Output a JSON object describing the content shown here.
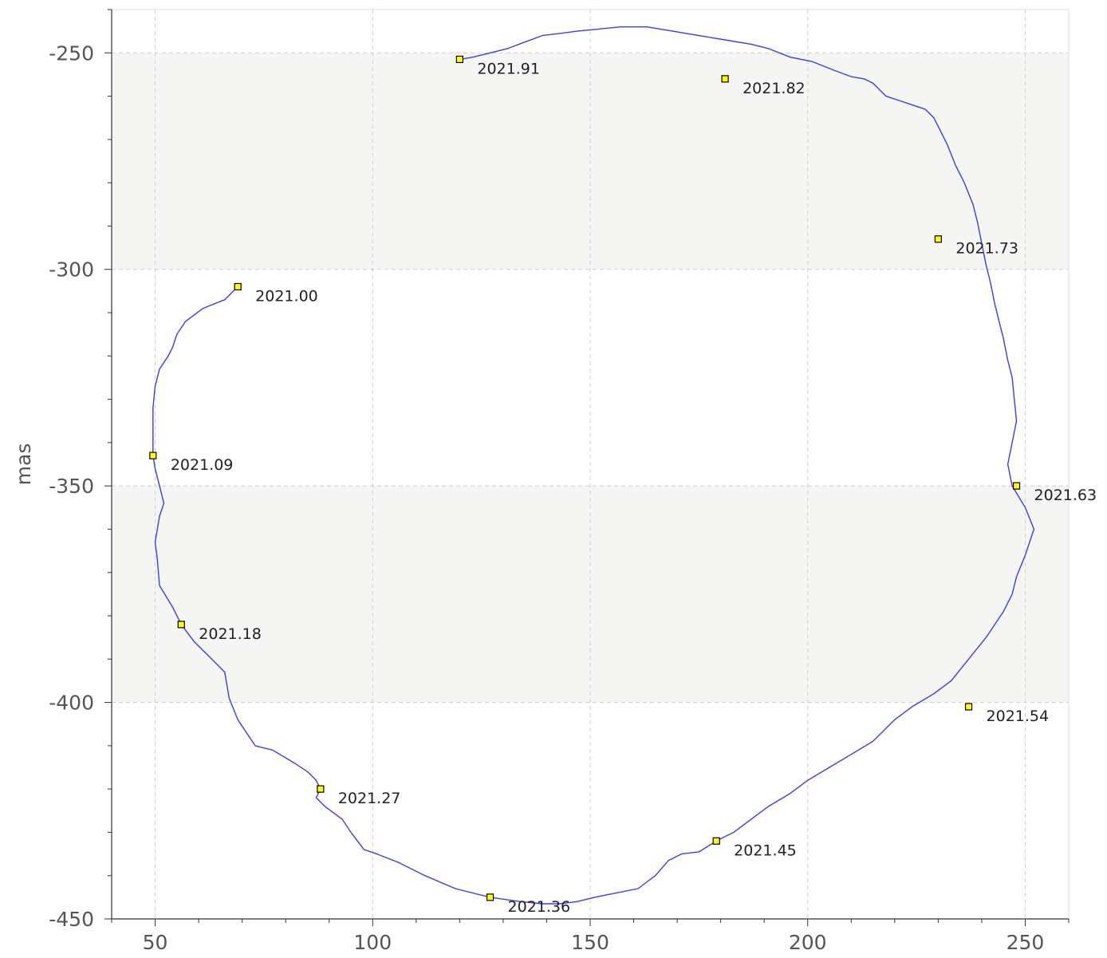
{
  "chart_data": {
    "type": "line",
    "title": "",
    "xlabel": "",
    "ylabel": "mas",
    "xlim": [
      40,
      260
    ],
    "ylim": [
      -450,
      -240
    ],
    "x_ticks": [
      50,
      100,
      150,
      200,
      250
    ],
    "x_tick_labels": [
      "50",
      "100",
      "150",
      "200",
      "250"
    ],
    "y_ticks": [
      -250,
      -300,
      -350,
      -400,
      -450
    ],
    "y_tick_labels": [
      "-250",
      "-300",
      "-350",
      "-400",
      "-450"
    ],
    "grid": true,
    "band_color": "#f5f5f3",
    "line_color": "#3b3bff",
    "marker_color": "#ffff00",
    "series": [
      {
        "x": [
          69,
          66,
          61,
          57,
          55,
          54,
          53,
          51,
          50,
          49.5,
          49.5,
          49.5,
          50,
          51,
          52,
          51,
          50.5,
          50,
          50.5,
          51,
          54,
          56,
          59,
          63,
          66,
          67,
          69,
          73,
          77,
          82,
          85,
          87,
          88,
          87,
          89,
          93,
          95,
          98,
          101,
          106,
          112,
          119,
          127,
          134,
          139,
          143,
          147,
          151,
          156,
          161,
          165,
          168,
          171,
          175,
          179,
          183,
          187,
          191,
          196,
          200,
          205,
          210,
          215,
          220,
          224,
          229,
          233,
          237,
          241,
          245,
          247,
          248,
          250,
          252,
          250,
          247,
          246,
          247,
          248,
          247.5,
          247,
          246,
          245,
          244,
          243,
          242,
          241,
          240,
          239,
          238,
          236,
          234,
          232,
          230,
          229,
          227,
          224,
          221,
          218,
          215,
          213,
          210,
          206,
          201,
          196,
          191,
          187,
          181,
          175,
          169,
          163,
          157,
          152,
          147,
          143,
          139,
          135,
          131,
          127,
          123,
          120
        ],
        "y": [
          -304,
          -307,
          -309,
          -312,
          -315,
          -318,
          -320,
          -323,
          -327,
          -332,
          -337,
          -343,
          -346,
          -350,
          -354,
          -357,
          -360,
          -363,
          -367,
          -373,
          -378,
          -382,
          -386,
          -390,
          -393,
          -399,
          -404,
          -410,
          -411,
          -414,
          -416,
          -418,
          -420,
          -422,
          -424,
          -427,
          -430,
          -434,
          -435,
          -437,
          -440,
          -443,
          -445,
          -446,
          -446.5,
          -446.5,
          -446,
          -445,
          -444,
          -443,
          -440,
          -436.5,
          -435,
          -434.5,
          -432,
          -430,
          -427,
          -424,
          -421,
          -418,
          -415,
          -412,
          -409,
          -404,
          -401,
          -398,
          -395,
          -390,
          -385,
          -379,
          -375,
          -371,
          -366,
          -360,
          -355,
          -350,
          -345,
          -340,
          -335,
          -330,
          -325,
          -321,
          -316,
          -312,
          -308,
          -303,
          -299,
          -294,
          -289,
          -285,
          -280,
          -276,
          -271,
          -267,
          -265,
          -263,
          -262,
          -261,
          -260,
          -257,
          -256,
          -255.5,
          -254,
          -252,
          -251,
          -249,
          -248,
          -247,
          -246,
          -245,
          -244,
          -244,
          -244.5,
          -245,
          -245.5,
          -246,
          -247.5,
          -249,
          -250,
          -251,
          -251.5
        ],
        "markers": [
          {
            "x": 69,
            "y": -304,
            "label": "2021.00"
          },
          {
            "x": 49.5,
            "y": -343,
            "label": "2021.09"
          },
          {
            "x": 56,
            "y": -382,
            "label": "2021.18"
          },
          {
            "x": 88,
            "y": -420,
            "label": "2021.27"
          },
          {
            "x": 127,
            "y": -445,
            "label": "2021.36"
          },
          {
            "x": 179,
            "y": -432,
            "label": "2021.45"
          },
          {
            "x": 237,
            "y": -401,
            "label": "2021.54"
          },
          {
            "x": 248,
            "y": -350,
            "label": "2021.63"
          },
          {
            "x": 230,
            "y": -293,
            "label": "2021.73"
          },
          {
            "x": 181,
            "y": -256,
            "label": "2021.82"
          },
          {
            "x": 120,
            "y": -251.5,
            "label": "2021.91"
          }
        ]
      }
    ]
  }
}
